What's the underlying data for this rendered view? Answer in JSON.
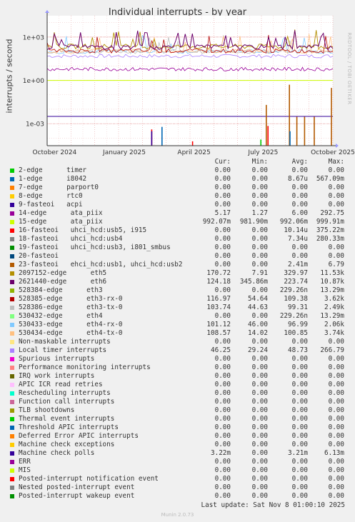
{
  "title": "Individual interrupts - by year",
  "side_text": "RRDTOOL / TOBI OETIKER",
  "footer": {
    "last_update": "Last update: Sat Nov  8 01:00:10 2025",
    "munin": "Munin 2.0.73"
  },
  "table_headers": {
    "cur": "Cur:",
    "min": "Min:",
    "avg": "Avg:",
    "max": "Max:"
  },
  "chart_data": {
    "type": "line",
    "title": "Individual interrupts - by year",
    "ylabel": "interrupts / second",
    "yscale": "log",
    "ylim": [
      3e-05,
      30000
    ],
    "y_ticks": [
      {
        "label": "1e+03",
        "value": 1000
      },
      {
        "label": "1e+00",
        "value": 1
      },
      {
        "label": "1e-03",
        "value": 0.001
      }
    ],
    "x_ticks": [
      {
        "label": "October 2024",
        "t": 0.026
      },
      {
        "label": "January 2025",
        "t": 0.27
      },
      {
        "label": "April 2025",
        "t": 0.514
      },
      {
        "label": "July 2025",
        "t": 0.756
      },
      {
        "label": "October 2025",
        "t": 1.0
      }
    ],
    "grid": true,
    "legend": "below",
    "series": [
      {
        "name": "2-edge      timer",
        "color": "#00cc00",
        "cur": "0.00",
        "min": "0.00",
        "avg": "0.00",
        "max": "0.00"
      },
      {
        "name": "1-edge      i8042",
        "color": "#0066b3",
        "cur": "0.00",
        "min": "0.00",
        "avg": "8.67u",
        "max": "567.09m"
      },
      {
        "name": "7-edge      parport0",
        "color": "#ff8000",
        "cur": "0.00",
        "min": "0.00",
        "avg": "0.00",
        "max": "0.00"
      },
      {
        "name": "8-edge      rtc0",
        "color": "#ffcc00",
        "cur": "0.00",
        "min": "0.00",
        "avg": "0.00",
        "max": "0.00"
      },
      {
        "name": "9-fasteoi   acpi",
        "color": "#330099",
        "cur": "0.00",
        "min": "0.00",
        "avg": "0.00",
        "max": "0.00"
      },
      {
        "name": "14-edge      ata_piix",
        "color": "#990099",
        "cur": "5.17",
        "min": "1.27",
        "avg": "6.00",
        "max": "292.75"
      },
      {
        "name": "15-edge      ata_piix",
        "color": "#ccff00",
        "cur": "992.07m",
        "min": "981.90m",
        "avg": "992.06m",
        "max": "999.91m"
      },
      {
        "name": "16-fasteoi   uhci_hcd:usb5, i915",
        "color": "#ff0000",
        "cur": "0.00",
        "min": "0.00",
        "avg": "10.14u",
        "max": "375.22m"
      },
      {
        "name": "18-fasteoi   uhci_hcd:usb4",
        "color": "#808080",
        "cur": "0.00",
        "min": "0.00",
        "avg": "7.34u",
        "max": "280.33m"
      },
      {
        "name": "19-fasteoi   uhci_hcd:usb3, i801_smbus",
        "color": "#008f00",
        "cur": "0.00",
        "min": "0.00",
        "avg": "0.00",
        "max": "0.00"
      },
      {
        "name": "20-fasteoi",
        "color": "#00487d",
        "cur": "0.00",
        "min": "0.00",
        "avg": "0.00",
        "max": "0.00"
      },
      {
        "name": "23-fasteoi   ehci_hcd:usb1, uhci_hcd:usb2",
        "color": "#b35a00",
        "cur": "0.00",
        "min": "0.00",
        "avg": "2.41m",
        "max": "6.79"
      },
      {
        "name": "2097152-edge      eth5",
        "color": "#b38f00",
        "cur": "170.72",
        "min": "7.91",
        "avg": "329.97",
        "max": "11.53k"
      },
      {
        "name": "2621440-edge      eth6",
        "color": "#6b006b",
        "cur": "124.18",
        "min": "345.86m",
        "avg": "223.74",
        "max": "10.87k"
      },
      {
        "name": "528384-edge      eth3",
        "color": "#8fb300",
        "cur": "0.00",
        "min": "0.00",
        "avg": "229.26n",
        "max": "13.29m"
      },
      {
        "name": "528385-edge      eth3-rx-0",
        "color": "#b30000",
        "cur": "116.97",
        "min": "54.64",
        "avg": "109.38",
        "max": "3.62k"
      },
      {
        "name": "528386-edge      eth3-tx-0",
        "color": "#bebebe",
        "cur": "103.74",
        "min": "44.63",
        "avg": "99.31",
        "max": "2.49k"
      },
      {
        "name": "530432-edge      eth4",
        "color": "#80ff80",
        "cur": "0.00",
        "min": "0.00",
        "avg": "229.26n",
        "max": "13.29m"
      },
      {
        "name": "530433-edge      eth4-rx-0",
        "color": "#80c9ff",
        "cur": "101.12",
        "min": "46.00",
        "avg": "96.99",
        "max": "2.06k"
      },
      {
        "name": "530434-edge      eth4-tx-0",
        "color": "#ffc080",
        "cur": "108.57",
        "min": "14.02",
        "avg": "100.85",
        "max": "3.74k"
      },
      {
        "name": "Non-maskable interrupts",
        "color": "#ffe680",
        "cur": "0.00",
        "min": "0.00",
        "avg": "0.00",
        "max": "0.00"
      },
      {
        "name": "Local timer interrupts",
        "color": "#aa80ff",
        "cur": "46.25",
        "min": "29.24",
        "avg": "48.73",
        "max": "266.79"
      },
      {
        "name": "Spurious interrupts",
        "color": "#ee00cc",
        "cur": "0.00",
        "min": "0.00",
        "avg": "0.00",
        "max": "0.00"
      },
      {
        "name": "Performance monitoring interrupts",
        "color": "#ff8080",
        "cur": "0.00",
        "min": "0.00",
        "avg": "0.00",
        "max": "0.00"
      },
      {
        "name": "IRQ work interrupts",
        "color": "#666600",
        "cur": "0.00",
        "min": "0.00",
        "avg": "0.00",
        "max": "0.00"
      },
      {
        "name": "APIC ICR read retries",
        "color": "#ffbfff",
        "cur": "0.00",
        "min": "0.00",
        "avg": "0.00",
        "max": "0.00"
      },
      {
        "name": "Rescheduling interrupts",
        "color": "#00ffcc",
        "cur": "0.00",
        "min": "0.00",
        "avg": "0.00",
        "max": "0.00"
      },
      {
        "name": "Function call interrupts",
        "color": "#cc6699",
        "cur": "0.00",
        "min": "0.00",
        "avg": "0.00",
        "max": "0.00"
      },
      {
        "name": "TLB shootdowns",
        "color": "#999900",
        "cur": "0.00",
        "min": "0.00",
        "avg": "0.00",
        "max": "0.00"
      },
      {
        "name": "Thermal event interrupts",
        "color": "#00cc00",
        "cur": "0.00",
        "min": "0.00",
        "avg": "0.00",
        "max": "0.00"
      },
      {
        "name": "Threshold APIC interrupts",
        "color": "#0066b3",
        "cur": "0.00",
        "min": "0.00",
        "avg": "0.00",
        "max": "0.00"
      },
      {
        "name": "Deferred Error APIC interrupts",
        "color": "#ff8000",
        "cur": "0.00",
        "min": "0.00",
        "avg": "0.00",
        "max": "0.00"
      },
      {
        "name": "Machine check exceptions",
        "color": "#ffcc00",
        "cur": "0.00",
        "min": "0.00",
        "avg": "0.00",
        "max": "0.00"
      },
      {
        "name": "Machine check polls",
        "color": "#330099",
        "cur": "3.22m",
        "min": "0.00",
        "avg": "3.21m",
        "max": "6.13m"
      },
      {
        "name": "ERR",
        "color": "#990099",
        "cur": "0.00",
        "min": "0.00",
        "avg": "0.00",
        "max": "0.00"
      },
      {
        "name": "MIS",
        "color": "#ccff00",
        "cur": "0.00",
        "min": "0.00",
        "avg": "0.00",
        "max": "0.00"
      },
      {
        "name": "Posted-interrupt notification event",
        "color": "#ff0000",
        "cur": "0.00",
        "min": "0.00",
        "avg": "0.00",
        "max": "0.00"
      },
      {
        "name": "Nested posted-interrupt event",
        "color": "#808080",
        "cur": "0.00",
        "min": "0.00",
        "avg": "0.00",
        "max": "0.00"
      },
      {
        "name": "Posted-interrupt wakeup event",
        "color": "#008f00",
        "cur": "0.00",
        "min": "0.00",
        "avg": "0.00",
        "max": "0.00"
      }
    ]
  }
}
